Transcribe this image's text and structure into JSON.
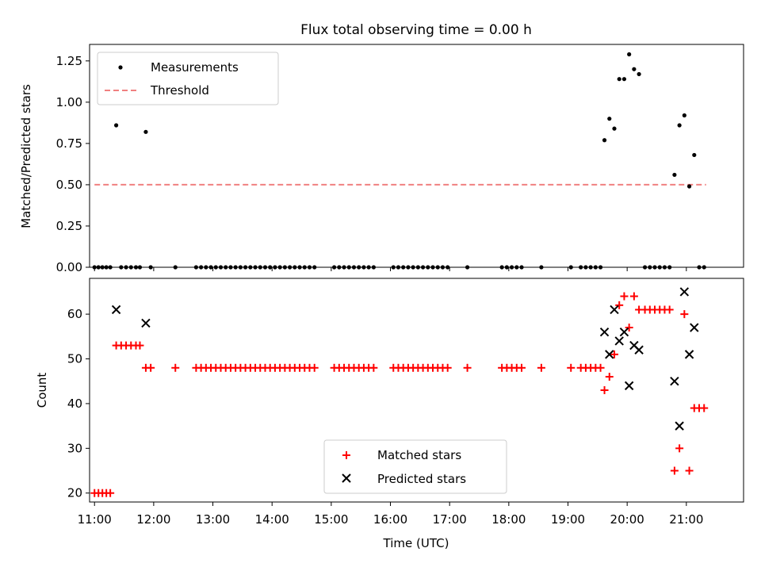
{
  "chart_data": [
    {
      "type": "scatter",
      "title": "Flux total observing time = 0.00 h",
      "xlabel": "",
      "ylabel": "Matched/Predicted stars",
      "xlim": [
        "10:55",
        "21:58"
      ],
      "ylim": [
        0,
        1.35
      ],
      "yticks": [
        "0.00",
        "0.25",
        "0.50",
        "0.75",
        "1.00",
        "1.25"
      ],
      "grid": false,
      "legend": "top-left",
      "series": [
        {
          "name": "Measurements",
          "marker": "dot",
          "color": "#000000",
          "points": [
            [
              "11:00",
              0
            ],
            [
              "11:04",
              0
            ],
            [
              "11:08",
              0
            ],
            [
              "11:12",
              0
            ],
            [
              "11:16",
              0
            ],
            [
              "11:22",
              0.86
            ],
            [
              "11:27",
              0
            ],
            [
              "11:32",
              0
            ],
            [
              "11:37",
              0
            ],
            [
              "11:42",
              0
            ],
            [
              "11:46",
              0
            ],
            [
              "11:52",
              0.82
            ],
            [
              "11:57",
              0
            ],
            [
              "12:22",
              0
            ],
            [
              "12:43",
              0
            ],
            [
              "12:48",
              0
            ],
            [
              "12:53",
              0
            ],
            [
              "12:58",
              0
            ],
            [
              "13:03",
              0
            ],
            [
              "13:08",
              0
            ],
            [
              "13:13",
              0
            ],
            [
              "13:18",
              0
            ],
            [
              "13:23",
              0
            ],
            [
              "13:28",
              0
            ],
            [
              "13:33",
              0
            ],
            [
              "13:38",
              0
            ],
            [
              "13:43",
              0
            ],
            [
              "13:48",
              0
            ],
            [
              "13:53",
              0
            ],
            [
              "13:58",
              0
            ],
            [
              "14:03",
              0
            ],
            [
              "14:08",
              0
            ],
            [
              "14:13",
              0
            ],
            [
              "14:18",
              0
            ],
            [
              "14:23",
              0
            ],
            [
              "14:28",
              0
            ],
            [
              "14:33",
              0
            ],
            [
              "14:38",
              0
            ],
            [
              "14:43",
              0
            ],
            [
              "15:03",
              0
            ],
            [
              "15:08",
              0
            ],
            [
              "15:13",
              0
            ],
            [
              "15:18",
              0
            ],
            [
              "15:23",
              0
            ],
            [
              "15:28",
              0
            ],
            [
              "15:33",
              0
            ],
            [
              "15:38",
              0
            ],
            [
              "15:43",
              0
            ],
            [
              "16:03",
              0
            ],
            [
              "16:08",
              0
            ],
            [
              "16:13",
              0
            ],
            [
              "16:18",
              0
            ],
            [
              "16:23",
              0
            ],
            [
              "16:28",
              0
            ],
            [
              "16:33",
              0
            ],
            [
              "16:38",
              0
            ],
            [
              "16:43",
              0
            ],
            [
              "16:48",
              0
            ],
            [
              "16:53",
              0
            ],
            [
              "16:58",
              0
            ],
            [
              "17:18",
              0
            ],
            [
              "17:53",
              0
            ],
            [
              "17:58",
              0
            ],
            [
              "18:03",
              0
            ],
            [
              "18:08",
              0
            ],
            [
              "18:13",
              0
            ],
            [
              "18:33",
              0
            ],
            [
              "19:03",
              0
            ],
            [
              "19:13",
              0
            ],
            [
              "19:18",
              0
            ],
            [
              "19:23",
              0
            ],
            [
              "19:28",
              0
            ],
            [
              "19:33",
              0
            ],
            [
              "19:37",
              0.77
            ],
            [
              "19:42",
              0.9
            ],
            [
              "19:47",
              0.84
            ],
            [
              "19:52",
              1.14
            ],
            [
              "19:57",
              1.14
            ],
            [
              "20:02",
              1.29
            ],
            [
              "20:07",
              1.2
            ],
            [
              "20:12",
              1.17
            ],
            [
              "20:18",
              0
            ],
            [
              "20:23",
              0
            ],
            [
              "20:28",
              0
            ],
            [
              "20:33",
              0
            ],
            [
              "20:38",
              0
            ],
            [
              "20:43",
              0
            ],
            [
              "20:48",
              0.56
            ],
            [
              "20:53",
              0.86
            ],
            [
              "20:58",
              0.92
            ],
            [
              "21:03",
              0.49
            ],
            [
              "21:08",
              0.68
            ],
            [
              "21:13",
              0
            ],
            [
              "21:18",
              0
            ]
          ]
        },
        {
          "name": "Threshold",
          "marker": "dashed-line",
          "color": "#f08080",
          "points": [
            [
              "11:00",
              0.5
            ],
            [
              "21:20",
              0.5
            ]
          ]
        }
      ]
    },
    {
      "type": "scatter",
      "title": "",
      "xlabel": "Time (UTC)",
      "ylabel": "Count",
      "xlim": [
        "10:55",
        "21:58"
      ],
      "ylim": [
        18,
        68
      ],
      "xticks": [
        "11:00",
        "12:00",
        "13:00",
        "14:00",
        "15:00",
        "16:00",
        "17:00",
        "18:00",
        "19:00",
        "20:00",
        "21:00"
      ],
      "yticks": [
        "20",
        "30",
        "40",
        "50",
        "60"
      ],
      "grid": false,
      "legend": "bottom-center",
      "series": [
        {
          "name": "Matched stars",
          "marker": "plus",
          "color": "#ff0000",
          "points": [
            [
              "11:00",
              20
            ],
            [
              "11:04",
              20
            ],
            [
              "11:08",
              20
            ],
            [
              "11:12",
              20
            ],
            [
              "11:16",
              20
            ],
            [
              "11:22",
              53
            ],
            [
              "11:27",
              53
            ],
            [
              "11:32",
              53
            ],
            [
              "11:37",
              53
            ],
            [
              "11:42",
              53
            ],
            [
              "11:46",
              53
            ],
            [
              "11:52",
              48
            ],
            [
              "11:57",
              48
            ],
            [
              "12:22",
              48
            ],
            [
              "12:43",
              48
            ],
            [
              "12:48",
              48
            ],
            [
              "12:53",
              48
            ],
            [
              "12:58",
              48
            ],
            [
              "13:03",
              48
            ],
            [
              "13:08",
              48
            ],
            [
              "13:13",
              48
            ],
            [
              "13:18",
              48
            ],
            [
              "13:23",
              48
            ],
            [
              "13:28",
              48
            ],
            [
              "13:33",
              48
            ],
            [
              "13:38",
              48
            ],
            [
              "13:43",
              48
            ],
            [
              "13:48",
              48
            ],
            [
              "13:53",
              48
            ],
            [
              "13:58",
              48
            ],
            [
              "14:03",
              48
            ],
            [
              "14:08",
              48
            ],
            [
              "14:13",
              48
            ],
            [
              "14:18",
              48
            ],
            [
              "14:23",
              48
            ],
            [
              "14:28",
              48
            ],
            [
              "14:33",
              48
            ],
            [
              "14:38",
              48
            ],
            [
              "14:43",
              48
            ],
            [
              "15:03",
              48
            ],
            [
              "15:08",
              48
            ],
            [
              "15:13",
              48
            ],
            [
              "15:18",
              48
            ],
            [
              "15:23",
              48
            ],
            [
              "15:28",
              48
            ],
            [
              "15:33",
              48
            ],
            [
              "15:38",
              48
            ],
            [
              "15:43",
              48
            ],
            [
              "16:03",
              48
            ],
            [
              "16:08",
              48
            ],
            [
              "16:13",
              48
            ],
            [
              "16:18",
              48
            ],
            [
              "16:23",
              48
            ],
            [
              "16:28",
              48
            ],
            [
              "16:33",
              48
            ],
            [
              "16:38",
              48
            ],
            [
              "16:43",
              48
            ],
            [
              "16:48",
              48
            ],
            [
              "16:53",
              48
            ],
            [
              "16:58",
              48
            ],
            [
              "17:18",
              48
            ],
            [
              "17:53",
              48
            ],
            [
              "17:58",
              48
            ],
            [
              "18:03",
              48
            ],
            [
              "18:08",
              48
            ],
            [
              "18:13",
              48
            ],
            [
              "18:33",
              48
            ],
            [
              "19:03",
              48
            ],
            [
              "19:13",
              48
            ],
            [
              "19:18",
              48
            ],
            [
              "19:23",
              48
            ],
            [
              "19:28",
              48
            ],
            [
              "19:33",
              48
            ],
            [
              "19:37",
              43
            ],
            [
              "19:42",
              46
            ],
            [
              "19:47",
              51
            ],
            [
              "19:52",
              62
            ],
            [
              "19:57",
              64
            ],
            [
              "20:02",
              57
            ],
            [
              "20:07",
              64
            ],
            [
              "20:12",
              61
            ],
            [
              "20:18",
              61
            ],
            [
              "20:23",
              61
            ],
            [
              "20:28",
              61
            ],
            [
              "20:33",
              61
            ],
            [
              "20:38",
              61
            ],
            [
              "20:43",
              61
            ],
            [
              "20:48",
              25
            ],
            [
              "20:53",
              30
            ],
            [
              "20:58",
              60
            ],
            [
              "21:03",
              25
            ],
            [
              "21:08",
              39
            ],
            [
              "21:13",
              39
            ],
            [
              "21:18",
              39
            ]
          ]
        },
        {
          "name": "Predicted stars",
          "marker": "x",
          "color": "#000000",
          "points": [
            [
              "11:22",
              61
            ],
            [
              "11:52",
              58
            ],
            [
              "19:37",
              56
            ],
            [
              "19:42",
              51
            ],
            [
              "19:47",
              61
            ],
            [
              "19:52",
              54
            ],
            [
              "19:57",
              56
            ],
            [
              "20:02",
              44
            ],
            [
              "20:07",
              53
            ],
            [
              "20:12",
              52
            ],
            [
              "20:48",
              45
            ],
            [
              "20:53",
              35
            ],
            [
              "20:58",
              65
            ],
            [
              "21:03",
              51
            ],
            [
              "21:08",
              57
            ]
          ]
        }
      ]
    }
  ]
}
